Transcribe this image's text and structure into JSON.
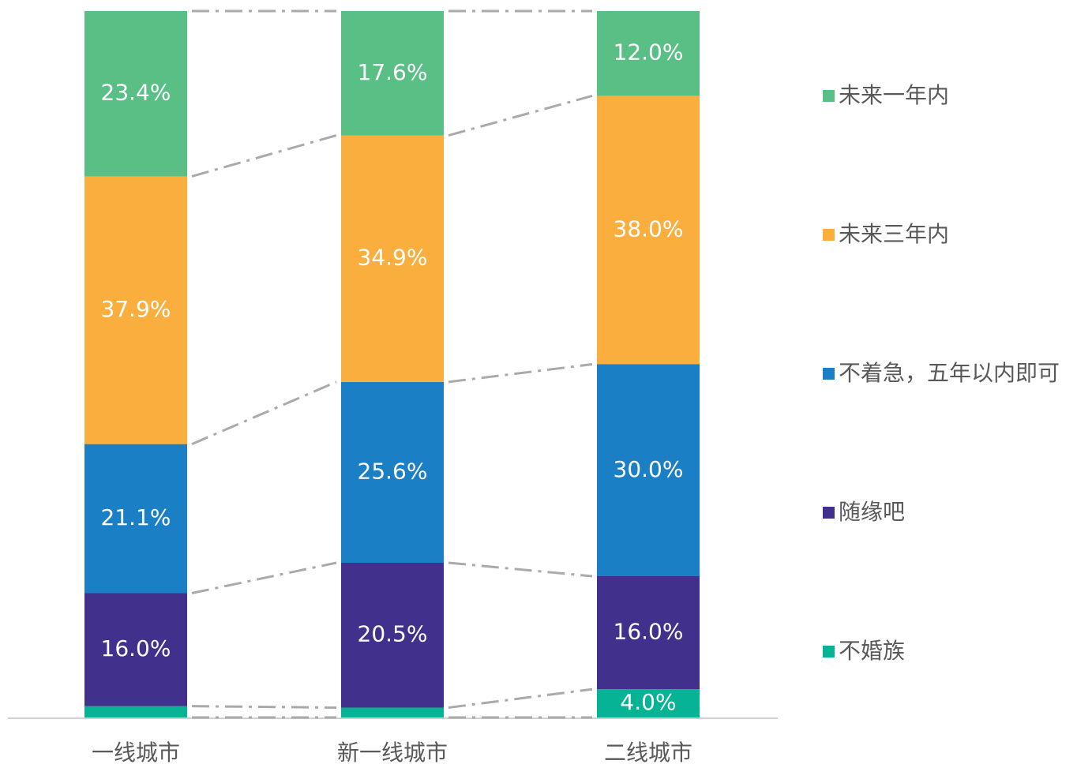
{
  "chart_data": {
    "type": "stacked_bar",
    "categories": [
      "一线城市",
      "新一线城市",
      "二线城市"
    ],
    "ylim": [
      0,
      100
    ],
    "legend": "right",
    "series": [
      {
        "name": "不婚族",
        "color": "#06b394",
        "values": [
          1.6,
          1.4,
          4.0
        ],
        "value_labels": [
          "1.6%",
          "1.4%",
          "4.0%"
        ]
      },
      {
        "name": "随缘吧",
        "color": "#42318c",
        "values": [
          16.0,
          20.5,
          16.0
        ],
        "value_labels": [
          "16.0%",
          "20.5%",
          "16.0%"
        ]
      },
      {
        "name": "不着急，五年以内即可",
        "color": "#1a7fc4",
        "values": [
          21.1,
          25.6,
          30.0
        ],
        "value_labels": [
          "21.1%",
          "25.6%",
          "30.0%"
        ]
      },
      {
        "name": "未来三年内",
        "color": "#f9ae3e",
        "values": [
          37.9,
          34.9,
          38.0
        ],
        "value_labels": [
          "37.9%",
          "34.9%",
          "38.0%"
        ]
      },
      {
        "name": "未来一年内",
        "color": "#5abf84",
        "values": [
          23.4,
          17.6,
          12.0
        ],
        "value_labels": [
          "23.4%",
          "17.6%",
          "12.0%"
        ]
      }
    ]
  }
}
